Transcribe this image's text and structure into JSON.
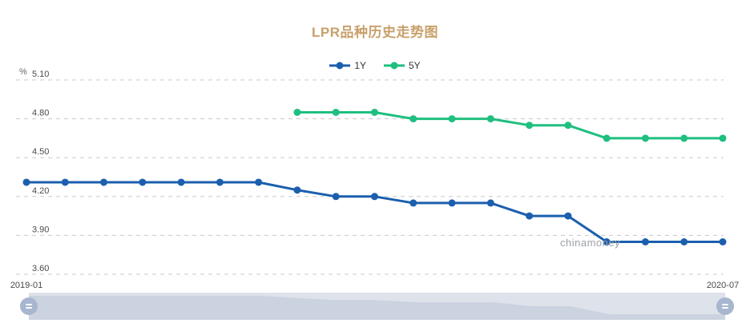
{
  "header": {
    "title": "LPR品种历史走势图"
  },
  "watermark": "chinamoney",
  "colors": {
    "title": "#c8a06b",
    "series_1y": "#1b5fae",
    "series_5y": "#1fbf7f",
    "grid_line": "#c9c9c9",
    "axis_text": "#4a4a4a",
    "unit_text": "#666666",
    "watermark": "#9aa0a8",
    "slider_bg": "#dee2ea",
    "slider_shadow": "#cbd2e0",
    "slider_handle": "#a8b6cf"
  },
  "legend": [
    {
      "name": "1Y",
      "color": "#1b5fae"
    },
    {
      "name": "5Y",
      "color": "#1fbf7f"
    }
  ],
  "chart_data": {
    "type": "line",
    "title": "LPR品种历史走势图",
    "ylabel": "%",
    "xlabel": "",
    "x": [
      "2019-01",
      "2019-02",
      "2019-03",
      "2019-04",
      "2019-05",
      "2019-06",
      "2019-07",
      "2019-08",
      "2019-09",
      "2019-10",
      "2019-11",
      "2019-12",
      "2020-01",
      "2020-02",
      "2020-03",
      "2020-04",
      "2020-05",
      "2020-06",
      "2020-07"
    ],
    "x_axis_labels_shown": [
      "2019-01",
      "2020-07"
    ],
    "yticks": [
      5.1,
      4.8,
      4.5,
      4.2,
      3.9,
      3.6
    ],
    "ylim": [
      3.6,
      5.1
    ],
    "grid": "horizontal-dashed",
    "legend_position": "top-center",
    "series": [
      {
        "name": "1Y",
        "color": "#1b5fae",
        "values": [
          4.31,
          4.31,
          4.31,
          4.31,
          4.31,
          4.31,
          4.31,
          4.25,
          4.2,
          4.2,
          4.15,
          4.15,
          4.15,
          4.05,
          4.05,
          3.85,
          3.85,
          3.85,
          3.85
        ]
      },
      {
        "name": "5Y",
        "color": "#1fbf7f",
        "values": [
          null,
          null,
          null,
          null,
          null,
          null,
          null,
          4.85,
          4.85,
          4.85,
          4.8,
          4.8,
          4.8,
          4.75,
          4.75,
          4.65,
          4.65,
          4.65,
          4.65
        ]
      }
    ]
  }
}
